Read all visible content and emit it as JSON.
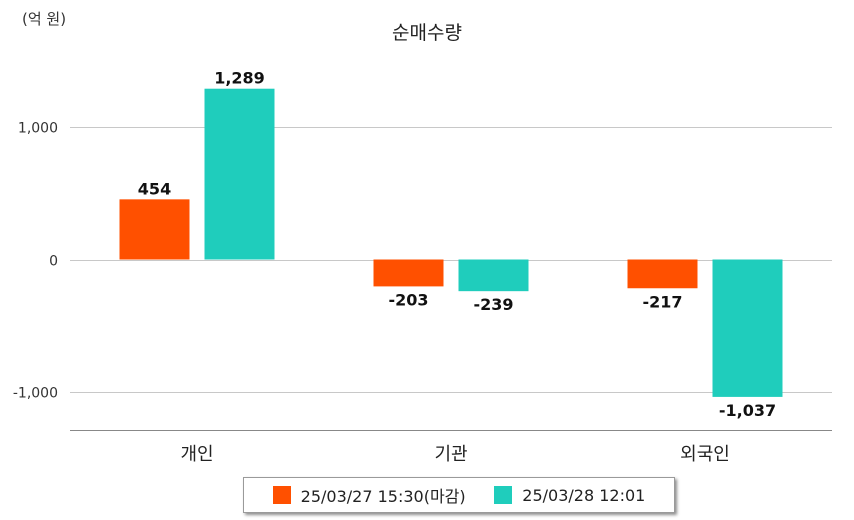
{
  "unit_label": "(억 원)",
  "chart_data": {
    "type": "bar",
    "title": "순매수량",
    "unit": "(억 원)",
    "categories": [
      "개인",
      "기관",
      "외국인"
    ],
    "series": [
      {
        "name": "25/03/27 15:30(마감)",
        "color": "#ff5000",
        "values": [
          454,
          -203,
          -217
        ],
        "labels": [
          "454",
          "-203",
          "-217"
        ]
      },
      {
        "name": "25/03/28 12:01",
        "color": "#1fcdbc",
        "values": [
          1289,
          -239,
          -1037
        ],
        "labels": [
          "1,289",
          "-239",
          "-1,037"
        ]
      }
    ],
    "yticks": [
      1000,
      0,
      -1000
    ],
    "ytick_labels": [
      "1,000",
      "0",
      "-1,000"
    ],
    "ylim": [
      -1280,
      1450
    ],
    "grid": true,
    "legend_position": "bottom"
  }
}
